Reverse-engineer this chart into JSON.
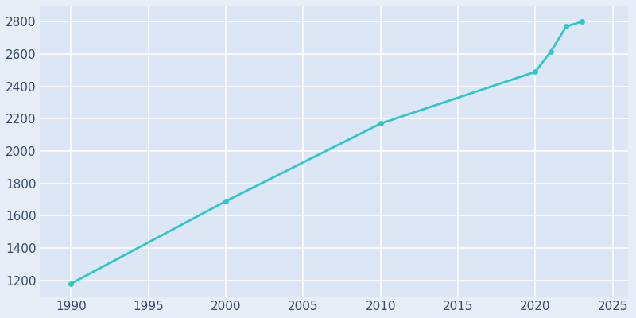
{
  "years": [
    1990,
    2000,
    2010,
    2020,
    2021,
    2022,
    2023
  ],
  "population": [
    1181,
    1690,
    2170,
    2490,
    2615,
    2770,
    2800
  ],
  "line_color": "#2ec8c8",
  "marker_color": "#2ec8c8",
  "background_color": "#e8eef7",
  "plot_bg_color": "#dce6f5",
  "grid_color": "#ffffff",
  "tick_color": "#3a4a6b",
  "xlim": [
    1988,
    2026
  ],
  "ylim": [
    1100,
    2900
  ],
  "xticks": [
    1990,
    1995,
    2000,
    2005,
    2010,
    2015,
    2020,
    2025
  ],
  "yticks": [
    1200,
    1400,
    1600,
    1800,
    2000,
    2200,
    2400,
    2600,
    2800
  ],
  "line_width": 2.0,
  "marker_size": 5,
  "tick_fontsize": 11
}
